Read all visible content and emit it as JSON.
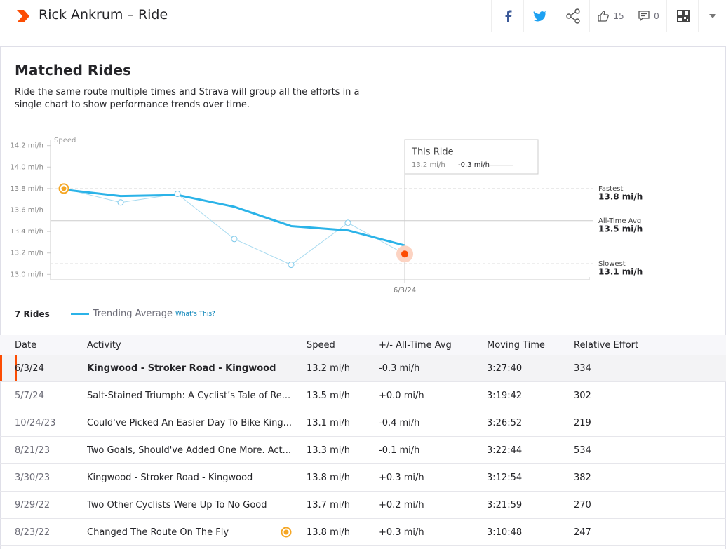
{
  "header": {
    "title": "Rick Ankrum – Ride",
    "kudos": "15",
    "comments": "0"
  },
  "section": {
    "title": "Matched Rides",
    "description": "Ride the same route multiple times and Strava will group all the efforts in a single chart to show performance trends over time."
  },
  "chart_data": {
    "type": "line",
    "y_label": "Speed",
    "ylim": [
      12.95,
      14.25
    ],
    "yticks": [
      {
        "value": 13.0,
        "label": "13.0 mi/h"
      },
      {
        "value": 13.2,
        "label": "13.2 mi/h"
      },
      {
        "value": 13.4,
        "label": "13.4 mi/h"
      },
      {
        "value": 13.6,
        "label": "13.6 mi/h"
      },
      {
        "value": 13.8,
        "label": "13.8 mi/h"
      },
      {
        "value": 14.0,
        "label": "14.0 mi/h"
      },
      {
        "value": 14.2,
        "label": "14.2 mi/h"
      }
    ],
    "categories": [
      null,
      null,
      null,
      null,
      null,
      null,
      "6/3/24"
    ],
    "series": [
      {
        "name": "Trending Average",
        "color": "#2bb3e8",
        "values": [
          13.79,
          13.73,
          13.74,
          13.63,
          13.45,
          13.41,
          13.27
        ]
      },
      {
        "color": "#a9dbf0",
        "values": [
          13.8,
          13.67,
          13.75,
          13.33,
          13.09,
          13.48,
          13.19
        ]
      }
    ],
    "reference_lines": [
      {
        "name": "Fastest",
        "value": 13.8,
        "label": "13.8 mi/h",
        "dashed": true
      },
      {
        "name": "All-Time Avg",
        "value": 13.5,
        "label": "13.5 mi/h",
        "dashed": false
      },
      {
        "name": "Slowest",
        "value": 13.1,
        "label": "13.1 mi/h",
        "dashed": true
      }
    ],
    "tooltip": {
      "title": "This Ride",
      "speed": "13.2 mi/h",
      "diff": "-0.3 mi/h"
    },
    "ride_count": "7 Rides",
    "help_link": "What's This?"
  },
  "table": {
    "columns": [
      "Date",
      "Activity",
      "Speed",
      "+/- All-Time Avg",
      "Moving Time",
      "Relative Effort"
    ],
    "rows": [
      [
        "6/3/24",
        "Kingwood - Stroker Road - Kingwood",
        "13.2 mi/h",
        "-0.3 mi/h",
        "3:27:40",
        "334"
      ],
      [
        "5/7/24",
        "Salt-Stained Triumph: A Cyclist’s Tale of Re...",
        "13.5 mi/h",
        "+0.0 mi/h",
        "3:19:42",
        "302"
      ],
      [
        "10/24/23",
        "Could've Picked An Easier Day To Bike King...",
        "13.1 mi/h",
        "-0.4 mi/h",
        "3:26:52",
        "219"
      ],
      [
        "8/21/23",
        "Two Goals, Should've Added One More. Act...",
        "13.3 mi/h",
        "-0.1 mi/h",
        "3:22:44",
        "534"
      ],
      [
        "3/30/23",
        "Kingwood - Stroker Road - Kingwood",
        "13.8 mi/h",
        "+0.3 mi/h",
        "3:12:54",
        "382"
      ],
      [
        "9/29/22",
        "Two Other Cyclists Were Up To No Good",
        "13.7 mi/h",
        "+0.2 mi/h",
        "3:21:59",
        "270"
      ],
      [
        "8/23/22",
        "Changed The Route On The Fly",
        "13.8 mi/h",
        "+0.3 mi/h",
        "3:10:48",
        "247"
      ]
    ]
  }
}
